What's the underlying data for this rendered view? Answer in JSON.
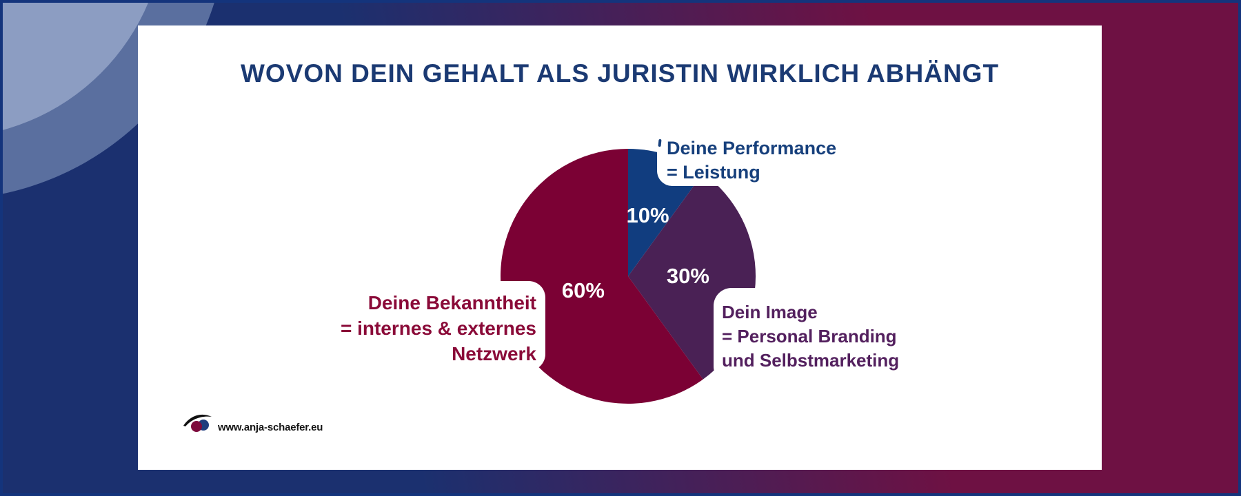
{
  "title": "WOVON DEIN GEHALT ALS JURISTIN WIRKLICH ABHÄNGT",
  "colors": {
    "background_blue": "#1B306F",
    "background_maroon": "#6E1143",
    "frame_border": "#14347C",
    "card": "#FFFFFF",
    "title_text": "#1B3A73",
    "decor_circle_outer": "#5A6F9F",
    "decor_circle_inner": "#8C9DC2",
    "percent_text": "#FFFFFF"
  },
  "chart_data": {
    "type": "pie",
    "title": "WOVON DEIN GEHALT ALS JURISTIN WIRKLICH ABHÄNGT",
    "start_angle_deg": 0,
    "direction": "clockwise",
    "legend_position": "callouts",
    "slices": [
      {
        "label": "Deine Performance = Leistung",
        "value": 10,
        "pct_label": "10%",
        "color": "#113D7F",
        "text_color": "#17407C"
      },
      {
        "label": "Dein Image = Personal Branding und Selbstmarketing",
        "value": 30,
        "pct_label": "30%",
        "color": "#4A2155",
        "text_color": "#53205E"
      },
      {
        "label": "Deine Bekanntheit = internes & externes Netzwerk",
        "value": 60,
        "pct_label": "60%",
        "color": "#7B0134",
        "text_color": "#8A0A38"
      }
    ]
  },
  "callouts": {
    "performance": {
      "line1": "Deine Performance",
      "line2": "= Leistung"
    },
    "image": {
      "line1": "Dein Image",
      "line2": "= Personal Branding",
      "line3": "und Selbstmarketing"
    },
    "bekanntheit": {
      "line1": "Deine Bekanntheit",
      "line2": "= internes & externes",
      "line3": "Netzwerk"
    }
  },
  "footer": {
    "website": "www.anja-schaefer.eu"
  }
}
